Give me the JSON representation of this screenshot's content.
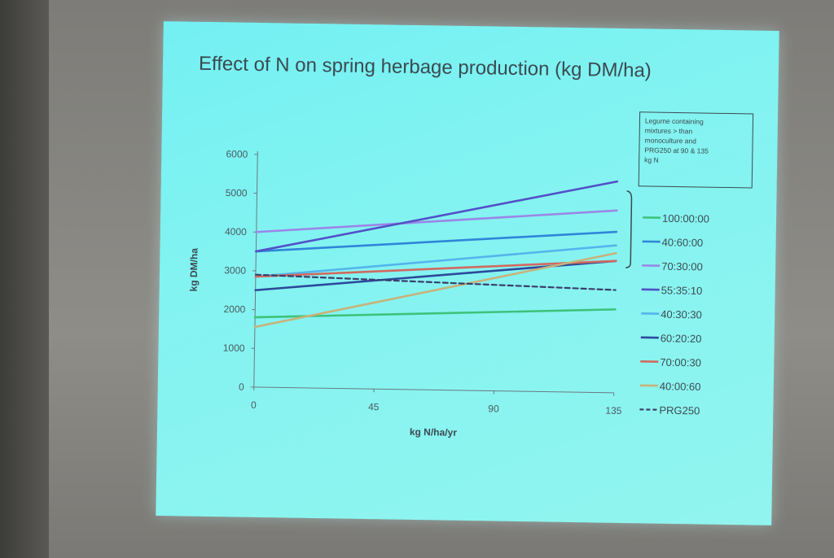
{
  "slide": {
    "title": "Effect of N on spring herbage production (kg DM/ha)",
    "note_lines": [
      "Legume containing",
      "mixtures > than",
      "monoculture and",
      "PRG250 at 90 & 135",
      "kg N"
    ]
  },
  "chart_data": {
    "type": "line",
    "title": "Effect of N on spring herbage production (kg DM/ha)",
    "xlabel": "kg N/ha/yr",
    "ylabel": "kg DM/ha",
    "x": [
      0,
      135
    ],
    "x_ticks": [
      0,
      45,
      90,
      135
    ],
    "y_ticks": [
      0,
      1000,
      2000,
      3000,
      4000,
      5000,
      6000
    ],
    "ylim": [
      0,
      6000
    ],
    "grid": false,
    "legend_position": "right",
    "series": [
      {
        "name": "100:00:00",
        "values": [
          1800,
          2150
        ],
        "color": "#3ec27a",
        "dash": false
      },
      {
        "name": "40:60:00",
        "values": [
          3500,
          4150
        ],
        "color": "#2f86d8",
        "dash": false
      },
      {
        "name": "70:30:00",
        "values": [
          4000,
          4700
        ],
        "color": "#9a86e6",
        "dash": false
      },
      {
        "name": "55:35:10",
        "values": [
          3500,
          5450
        ],
        "color": "#5250c8",
        "dash": false
      },
      {
        "name": "40:30:30",
        "values": [
          2850,
          3800
        ],
        "color": "#54b4ec",
        "dash": false
      },
      {
        "name": "60:20:20",
        "values": [
          2500,
          3400
        ],
        "color": "#2c4a9a",
        "dash": false
      },
      {
        "name": "70:00:30",
        "values": [
          2850,
          3400
        ],
        "color": "#d06a60",
        "dash": false
      },
      {
        "name": "40:00:60",
        "values": [
          1550,
          3600
        ],
        "color": "#c8b27a",
        "dash": false
      },
      {
        "name": "PRG250",
        "values": [
          2900,
          2650
        ],
        "color": "#3a3f6a",
        "dash": true
      }
    ]
  }
}
